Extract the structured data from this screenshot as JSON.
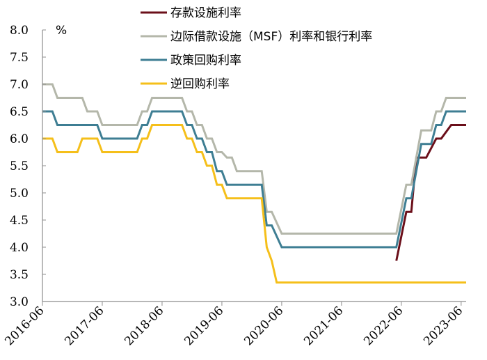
{
  "chart_data": {
    "type": "line",
    "ylabel": "%",
    "ylim": [
      3.0,
      8.0
    ],
    "yticks": [
      "3.0",
      "3.5",
      "4.0",
      "4.5",
      "5.0",
      "5.5",
      "6.0",
      "6.5",
      "7.0",
      "7.5",
      "8.0"
    ],
    "xlim": [
      "2016-06",
      "2023-07"
    ],
    "xticks": [
      "2016-06",
      "2017-06",
      "2018-06",
      "2019-06",
      "2020-06",
      "2021-06",
      "2022-06",
      "2023-06"
    ],
    "grid": false,
    "legend_position": "top-right",
    "series": [
      {
        "name": "存款设施利率",
        "color": "#6b0f1a",
        "points": [
          [
            "2022-05",
            3.75
          ],
          [
            "2022-07",
            4.65
          ],
          [
            "2022-08",
            4.65
          ],
          [
            "2022-09",
            5.65
          ],
          [
            "2022-11",
            5.65
          ],
          [
            "2023-01",
            6.0
          ],
          [
            "2023-02",
            6.0
          ],
          [
            "2023-04",
            6.25
          ],
          [
            "2023-07",
            6.25
          ]
        ]
      },
      {
        "name": "边际借款设施（MSF）利率和银行利率",
        "color": "#b4b7aa",
        "points": [
          [
            "2016-06",
            7.0
          ],
          [
            "2016-08",
            7.0
          ],
          [
            "2016-09",
            6.75
          ],
          [
            "2017-02",
            6.75
          ],
          [
            "2017-03",
            6.5
          ],
          [
            "2017-05",
            6.5
          ],
          [
            "2017-06",
            6.25
          ],
          [
            "2018-01",
            6.25
          ],
          [
            "2018-02",
            6.5
          ],
          [
            "2018-03",
            6.5
          ],
          [
            "2018-04",
            6.75
          ],
          [
            "2018-10",
            6.75
          ],
          [
            "2018-11",
            6.5
          ],
          [
            "2018-12",
            6.5
          ],
          [
            "2019-01",
            6.25
          ],
          [
            "2019-02",
            6.25
          ],
          [
            "2019-03",
            6.0
          ],
          [
            "2019-04",
            6.0
          ],
          [
            "2019-05",
            5.75
          ],
          [
            "2019-06",
            5.75
          ],
          [
            "2019-07",
            5.65
          ],
          [
            "2019-08",
            5.65
          ],
          [
            "2019-09",
            5.4
          ],
          [
            "2020-02",
            5.4
          ],
          [
            "2020-03",
            4.65
          ],
          [
            "2020-04",
            4.65
          ],
          [
            "2020-06",
            4.25
          ],
          [
            "2022-05",
            4.25
          ],
          [
            "2022-07",
            5.15
          ],
          [
            "2022-08",
            5.15
          ],
          [
            "2022-10",
            6.15
          ],
          [
            "2022-12",
            6.15
          ],
          [
            "2023-01",
            6.5
          ],
          [
            "2023-02",
            6.5
          ],
          [
            "2023-03",
            6.75
          ],
          [
            "2023-07",
            6.75
          ]
        ]
      },
      {
        "name": "政策回购利率",
        "color": "#3e7e93",
        "points": [
          [
            "2016-06",
            6.5
          ],
          [
            "2016-08",
            6.5
          ],
          [
            "2016-09",
            6.25
          ],
          [
            "2017-05",
            6.25
          ],
          [
            "2017-06",
            6.0
          ],
          [
            "2018-01",
            6.0
          ],
          [
            "2018-02",
            6.25
          ],
          [
            "2018-03",
            6.25
          ],
          [
            "2018-04",
            6.5
          ],
          [
            "2018-10",
            6.5
          ],
          [
            "2018-11",
            6.25
          ],
          [
            "2018-12",
            6.25
          ],
          [
            "2019-01",
            6.0
          ],
          [
            "2019-02",
            6.0
          ],
          [
            "2019-03",
            5.75
          ],
          [
            "2019-04",
            5.75
          ],
          [
            "2019-05",
            5.4
          ],
          [
            "2019-06",
            5.4
          ],
          [
            "2019-07",
            5.15
          ],
          [
            "2020-02",
            5.15
          ],
          [
            "2020-03",
            4.4
          ],
          [
            "2020-04",
            4.4
          ],
          [
            "2020-06",
            4.0
          ],
          [
            "2022-05",
            4.0
          ],
          [
            "2022-07",
            4.9
          ],
          [
            "2022-08",
            4.9
          ],
          [
            "2022-10",
            5.9
          ],
          [
            "2022-12",
            5.9
          ],
          [
            "2023-01",
            6.25
          ],
          [
            "2023-02",
            6.25
          ],
          [
            "2023-03",
            6.5
          ],
          [
            "2023-07",
            6.5
          ]
        ]
      },
      {
        "name": "逆回购利率",
        "color": "#f5bf1a",
        "points": [
          [
            "2016-06",
            6.0
          ],
          [
            "2016-08",
            6.0
          ],
          [
            "2016-09",
            5.75
          ],
          [
            "2017-01",
            5.75
          ],
          [
            "2017-02",
            6.0
          ],
          [
            "2017-05",
            6.0
          ],
          [
            "2017-06",
            5.75
          ],
          [
            "2018-01",
            5.75
          ],
          [
            "2018-02",
            6.0
          ],
          [
            "2018-03",
            6.0
          ],
          [
            "2018-04",
            6.25
          ],
          [
            "2018-10",
            6.25
          ],
          [
            "2018-11",
            6.0
          ],
          [
            "2018-12",
            6.0
          ],
          [
            "2019-01",
            5.75
          ],
          [
            "2019-02",
            5.75
          ],
          [
            "2019-03",
            5.5
          ],
          [
            "2019-04",
            5.5
          ],
          [
            "2019-05",
            5.15
          ],
          [
            "2019-06",
            5.15
          ],
          [
            "2019-07",
            4.9
          ],
          [
            "2020-02",
            4.9
          ],
          [
            "2020-03",
            4.0
          ],
          [
            "2020-04",
            3.75
          ],
          [
            "2020-05",
            3.35
          ],
          [
            "2023-07",
            3.35
          ]
        ]
      }
    ]
  }
}
